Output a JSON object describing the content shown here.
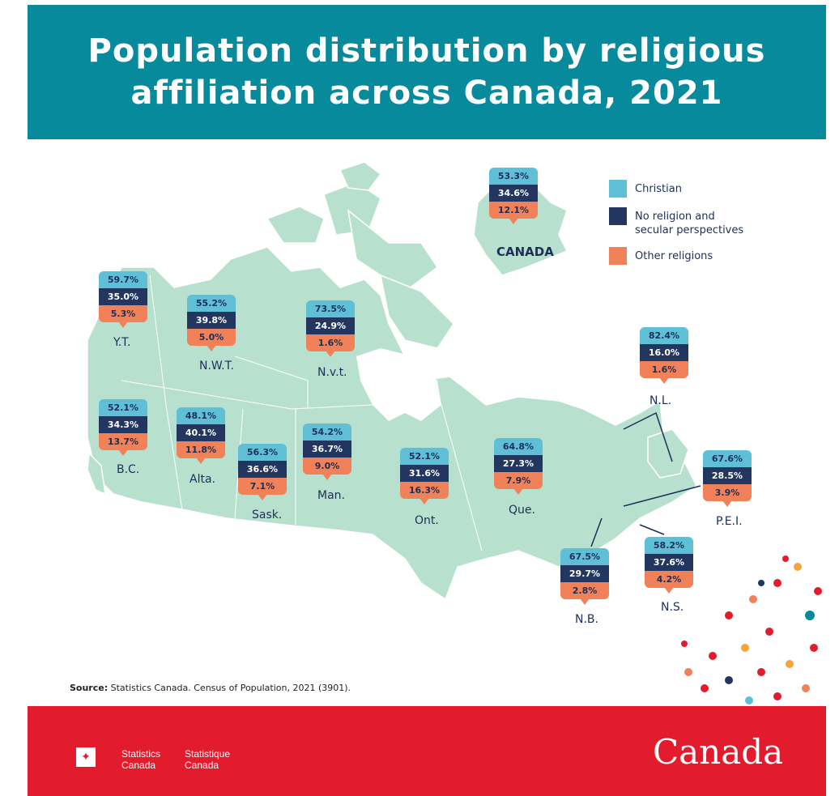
{
  "header": {
    "title_line1": "Population distribution by religious",
    "title_line2": "affiliation across Canada, 2021"
  },
  "colors": {
    "header_bg": "#078a9c",
    "christian": "#5fbfd6",
    "no_religion": "#22365f",
    "other": "#f08158",
    "land": "#b8e0cf",
    "footer_bg": "#e31c2d"
  },
  "legend": [
    {
      "label": "Christian",
      "color": "#5fbfd6"
    },
    {
      "label": "No religion and",
      "label2": "secular perspectives",
      "color": "#22365f"
    },
    {
      "label": "Other religions",
      "color": "#f08158"
    }
  ],
  "regions": [
    {
      "name": "CANADA",
      "christian": "53.3%",
      "no_religion": "34.6%",
      "other": "12.1%"
    },
    {
      "name": "Y.T.",
      "christian": "59.7%",
      "no_religion": "35.0%",
      "other": "5.3%"
    },
    {
      "name": "N.W.T.",
      "christian": "55.2%",
      "no_religion": "39.8%",
      "other": "5.0%"
    },
    {
      "name": "N.v.t.",
      "christian": "73.5%",
      "no_religion": "24.9%",
      "other": "1.6%"
    },
    {
      "name": "N.L.",
      "christian": "82.4%",
      "no_religion": "16.0%",
      "other": "1.6%"
    },
    {
      "name": "B.C.",
      "christian": "52.1%",
      "no_religion": "34.3%",
      "other": "13.7%"
    },
    {
      "name": "Alta.",
      "christian": "48.1%",
      "no_religion": "40.1%",
      "other": "11.8%"
    },
    {
      "name": "Sask.",
      "christian": "56.3%",
      "no_religion": "36.6%",
      "other": "7.1%"
    },
    {
      "name": "Man.",
      "christian": "54.2%",
      "no_religion": "36.7%",
      "other": "9.0%"
    },
    {
      "name": "Ont.",
      "christian": "52.1%",
      "no_religion": "31.6%",
      "other": "16.3%"
    },
    {
      "name": "Que.",
      "christian": "64.8%",
      "no_religion": "27.3%",
      "other": "7.9%"
    },
    {
      "name": "P.E.I.",
      "christian": "67.6%",
      "no_religion": "28.5%",
      "other": "3.9%"
    },
    {
      "name": "N.B.",
      "christian": "67.5%",
      "no_religion": "29.7%",
      "other": "2.8%"
    },
    {
      "name": "N.S.",
      "christian": "58.2%",
      "no_religion": "37.6%",
      "other": "4.2%"
    }
  ],
  "source": {
    "prefix": "Source:",
    "text": " Statistics Canada. Census of Population, 2021 (3901)."
  },
  "footer": {
    "org_en_1": "Statistics",
    "org_en_2": "Canada",
    "org_fr_1": "Statistique",
    "org_fr_2": "Canada",
    "wordmark": "Canada"
  }
}
